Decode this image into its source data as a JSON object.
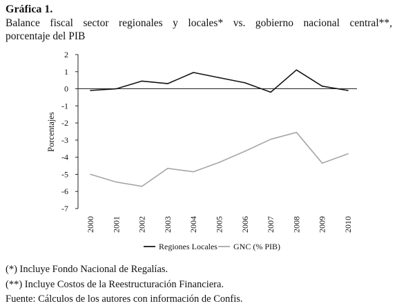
{
  "figure": {
    "label": "Gráfica 1.",
    "title_line1": "Balance fiscal sector regionales y locales* vs. gobierno nacional central**,",
    "title_line2": "porcentaje del PIB"
  },
  "chart_data": {
    "type": "line",
    "x": [
      "2000",
      "2001",
      "2002",
      "2003",
      "2004",
      "2005",
      "2006",
      "2007",
      "2008",
      "2009",
      "2010"
    ],
    "series": [
      {
        "name": "Regiones Locales",
        "color": "#111111",
        "values": [
          -0.1,
          0.0,
          0.45,
          0.3,
          0.95,
          0.65,
          0.35,
          -0.2,
          1.1,
          0.15,
          -0.1
        ]
      },
      {
        "name": "GNC (% PIB)",
        "color": "#a6a6a6",
        "values": [
          -5.0,
          -5.45,
          -5.7,
          -4.65,
          -4.85,
          -4.3,
          -3.65,
          -2.95,
          -2.55,
          -4.35,
          -3.8
        ]
      }
    ],
    "ylabel": "Porcentajes",
    "xlabel": "",
    "ylim": [
      -7,
      2
    ],
    "yticks": [
      2,
      1,
      0,
      -1,
      -2,
      -3,
      -4,
      -5,
      -6,
      -7
    ],
    "zero_line": true,
    "grid": false,
    "legend_position": "bottom"
  },
  "notes": [
    "(*) Incluye Fondo Nacional de Regalías.",
    "(**) Incluye Costos de la Reestructuración Financiera.",
    "Fuente: Cálculos de los autores con información de Confis."
  ]
}
